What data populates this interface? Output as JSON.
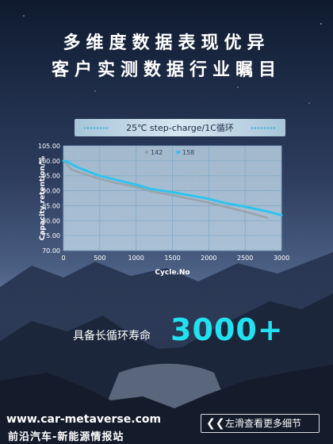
{
  "headline": {
    "line1": "多维度数据表现优异",
    "line2": "客户实测数据行业瞩目"
  },
  "chart_data": {
    "type": "line",
    "title": "25℃ step-charge/1C循环",
    "xlabel": "Cycle.No",
    "ylabel": "Capacity retention/%",
    "xlim": [
      0,
      3000
    ],
    "ylim": [
      70,
      105
    ],
    "x_ticks": [
      "0",
      "500",
      "1000",
      "1500",
      "2000",
      "2500",
      "3000"
    ],
    "y_ticks": [
      "105.00",
      "100.00",
      "95.00",
      "90.00",
      "85.00",
      "80.00",
      "75.00",
      "70.00"
    ],
    "grid": true,
    "legend_position": "top-right",
    "series": [
      {
        "name": "142",
        "color": "#9aa3ad",
        "x": [
          0,
          50,
          100,
          200,
          300,
          500,
          700,
          1000,
          1200,
          1500,
          1800,
          2000,
          2200,
          2500,
          2800
        ],
        "y": [
          100,
          98.8,
          97.2,
          96.3,
          95.5,
          94,
          92.7,
          91.3,
          89.8,
          88.5,
          87,
          86,
          84.8,
          83,
          81
        ]
      },
      {
        "name": "158",
        "color": "#2fc3ee",
        "x": [
          0,
          50,
          100,
          200,
          300,
          500,
          700,
          1000,
          1200,
          1500,
          1800,
          2000,
          2200,
          2500,
          2800,
          3000
        ],
        "y": [
          100,
          99.8,
          99,
          97.8,
          96.8,
          95,
          93.8,
          92,
          90.6,
          89.5,
          88.2,
          87.3,
          86,
          84.7,
          83.1,
          81.8
        ]
      }
    ]
  },
  "claim": {
    "label": "具备长循环寿命",
    "value": "3000+"
  },
  "footer": {
    "site": "www.car-metaverse.com",
    "site_cn": "前沿汽车-新能源情报站",
    "more_icon": "double-chevron-left-icon",
    "more_label": "左滑查看更多细节"
  },
  "colors": {
    "accent": "#22e1f0",
    "series_142": "#9aa3ad",
    "series_158": "#2fc3ee"
  }
}
